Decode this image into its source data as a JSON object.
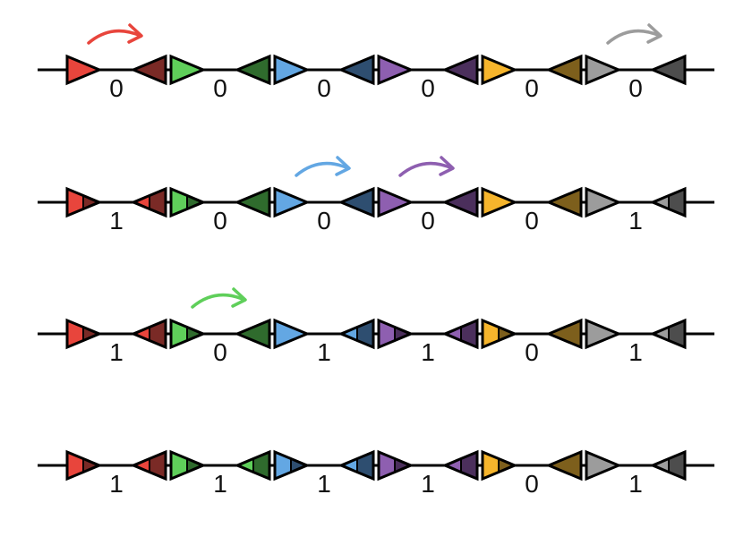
{
  "colors": {
    "stroke": "#000000",
    "pairs": [
      {
        "light": "#e8453c",
        "dark": "#7a2a26"
      },
      {
        "light": "#5fcf5a",
        "dark": "#2f6b2d"
      },
      {
        "light": "#63a7e3",
        "dark": "#2e4e70"
      },
      {
        "light": "#8e5fb0",
        "dark": "#4b2f5c"
      },
      {
        "light": "#f6b52c",
        "dark": "#7d5f1c"
      },
      {
        "light": "#9c9c9c",
        "dark": "#4d4d4d"
      }
    ]
  },
  "rows": [
    {
      "labels": [
        "0",
        "0",
        "0",
        "0",
        "0",
        "0"
      ],
      "arrows": [
        {
          "pair": 0
        },
        {
          "pair": 5
        }
      ]
    },
    {
      "labels": [
        "1",
        "0",
        "0",
        "0",
        "0",
        "1"
      ],
      "arrows": [
        {
          "pair": 2
        },
        {
          "pair": 3
        }
      ]
    },
    {
      "labels": [
        "1",
        "0",
        "1",
        "1",
        "0",
        "1"
      ],
      "arrows": [
        {
          "pair": 1
        }
      ]
    },
    {
      "labels": [
        "1",
        "1",
        "1",
        "1",
        "0",
        "1"
      ],
      "arrows": []
    }
  ]
}
